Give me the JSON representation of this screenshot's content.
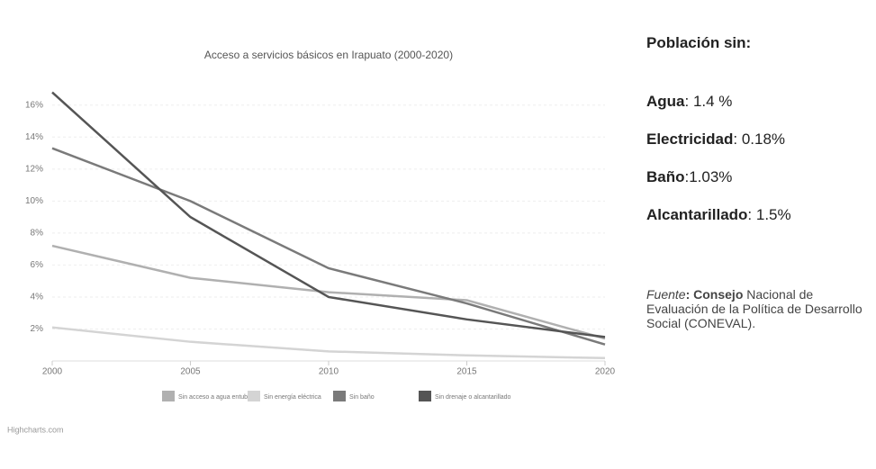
{
  "chart_data": {
    "type": "line",
    "title": "Acceso a servicios básicos en Irapuato (2000-2020)",
    "x": [
      2000,
      2005,
      2010,
      2015,
      2020
    ],
    "xlim": [
      2000,
      2020
    ],
    "xticks": [
      2000,
      2005,
      2010,
      2015,
      2020
    ],
    "ylim": [
      0,
      17
    ],
    "yticks": [
      {
        "value": 2,
        "label": "2%"
      },
      {
        "value": 4,
        "label": "4%"
      },
      {
        "value": 6,
        "label": "6%"
      },
      {
        "value": 8,
        "label": "8%"
      },
      {
        "value": 10,
        "label": "10%"
      },
      {
        "value": 12,
        "label": "12%"
      },
      {
        "value": 14,
        "label": "14%"
      },
      {
        "value": 16,
        "label": "16%"
      }
    ],
    "grid": true,
    "series": [
      {
        "name": "Sin acceso a agua entubada",
        "color": "#b0b0b0",
        "values": [
          7.2,
          5.2,
          4.3,
          3.8,
          1.4
        ]
      },
      {
        "name": "Sin energía eléctrica",
        "color": "#d4d4d4",
        "values": [
          2.1,
          1.2,
          0.6,
          0.35,
          0.18
        ]
      },
      {
        "name": "Sin baño",
        "color": "#7a7a7a",
        "values": [
          13.3,
          10.0,
          5.8,
          3.6,
          1.03
        ]
      },
      {
        "name": "Sin drenaje o alcantarillado",
        "color": "#555555",
        "values": [
          16.8,
          9.0,
          4.0,
          2.6,
          1.5
        ]
      }
    ],
    "credits": "Highcharts.com"
  },
  "panel": {
    "heading": "Población sin:",
    "items": [
      {
        "label": "Agua",
        "value": ": 1.4 %"
      },
      {
        "label": "Electricidad",
        "value": ": 0.18%"
      },
      {
        "label": "Baño",
        "value": ":1.03%"
      },
      {
        "label": "Alcantarillado",
        "value": ": 1.5%"
      }
    ],
    "source_label": "Fuente",
    "source_org": ": Consejo",
    "source_text": "Nacional de Evaluación de la Política de Desarrollo Social (CONEVAL)."
  }
}
